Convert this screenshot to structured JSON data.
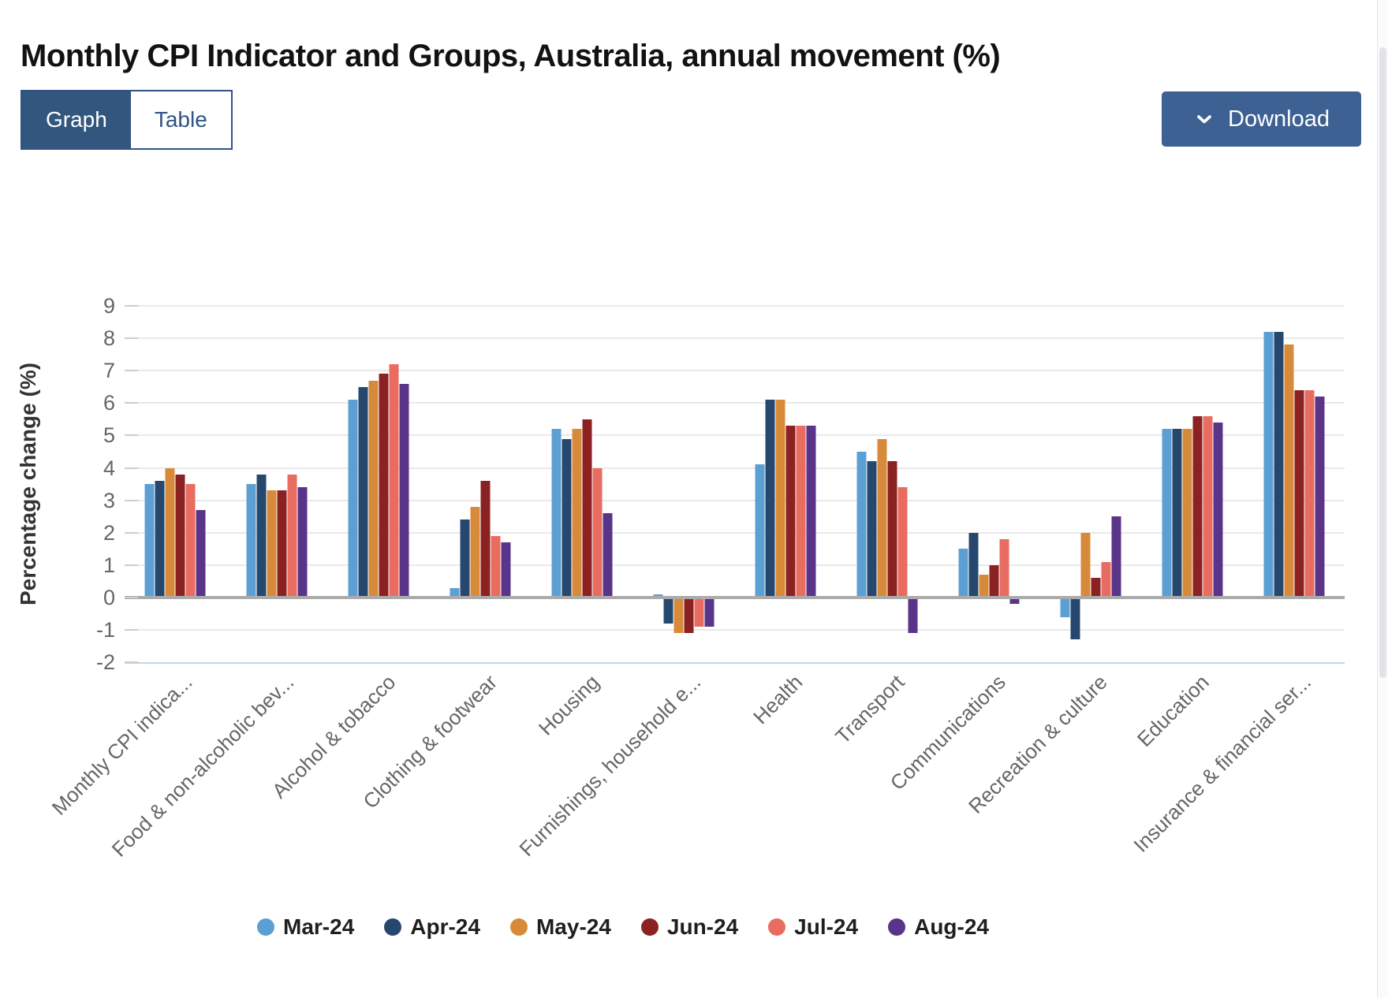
{
  "page": {
    "title": "Monthly CPI Indicator and Groups, Australia, annual movement (%)"
  },
  "view_toggle": {
    "graph_label": "Graph",
    "table_label": "Table",
    "active": "Graph"
  },
  "download": {
    "label": "Download"
  },
  "chart_data": {
    "type": "bar",
    "title": "Monthly CPI Indicator and Groups, Australia, annual movement (%)",
    "xlabel": "",
    "ylabel": "Percentage change (%)",
    "ylim": [
      -2,
      9
    ],
    "ytick_step": 1,
    "grid": true,
    "legend_position": "bottom",
    "zero_line_color": "#ABABAB",
    "gridline_color": "#E9E9E9",
    "axis_bottom_color": "#C6D5E6",
    "categories": [
      "Monthly CPI indica...",
      "Food & non-alcoholic bev...",
      "Alcohol & tobacco",
      "Clothing & footwear",
      "Housing",
      "Furnishings, household e...",
      "Health",
      "Transport",
      "Communications",
      "Recreation & culture",
      "Education",
      "Insurance & financial ser..."
    ],
    "series": [
      {
        "name": "Mar-24",
        "color": "#5CA0D3",
        "values": [
          3.5,
          3.5,
          6.1,
          0.3,
          5.2,
          0.1,
          4.1,
          4.5,
          1.5,
          -0.6,
          5.2,
          8.2
        ]
      },
      {
        "name": "Apr-24",
        "color": "#26486F",
        "values": [
          3.6,
          3.8,
          6.5,
          2.4,
          4.9,
          -0.8,
          6.1,
          4.2,
          2.0,
          -1.3,
          5.2,
          8.2
        ]
      },
      {
        "name": "May-24",
        "color": "#D88A3B",
        "values": [
          4.0,
          3.3,
          6.7,
          2.8,
          5.2,
          -1.1,
          6.1,
          4.9,
          0.7,
          2.0,
          5.2,
          7.8
        ]
      },
      {
        "name": "Jun-24",
        "color": "#8B2221",
        "values": [
          3.8,
          3.3,
          6.9,
          3.6,
          5.5,
          -1.1,
          5.3,
          4.2,
          1.0,
          0.6,
          5.6,
          6.4
        ]
      },
      {
        "name": "Jul-24",
        "color": "#E96C61",
        "values": [
          3.5,
          3.8,
          7.2,
          1.9,
          4.0,
          -0.9,
          5.3,
          3.4,
          1.8,
          1.1,
          5.6,
          6.4
        ]
      },
      {
        "name": "Aug-24",
        "color": "#5A3488",
        "values": [
          2.7,
          3.4,
          6.6,
          1.7,
          2.6,
          -0.9,
          5.3,
          -1.1,
          -0.2,
          2.5,
          5.4,
          6.2
        ]
      }
    ]
  }
}
